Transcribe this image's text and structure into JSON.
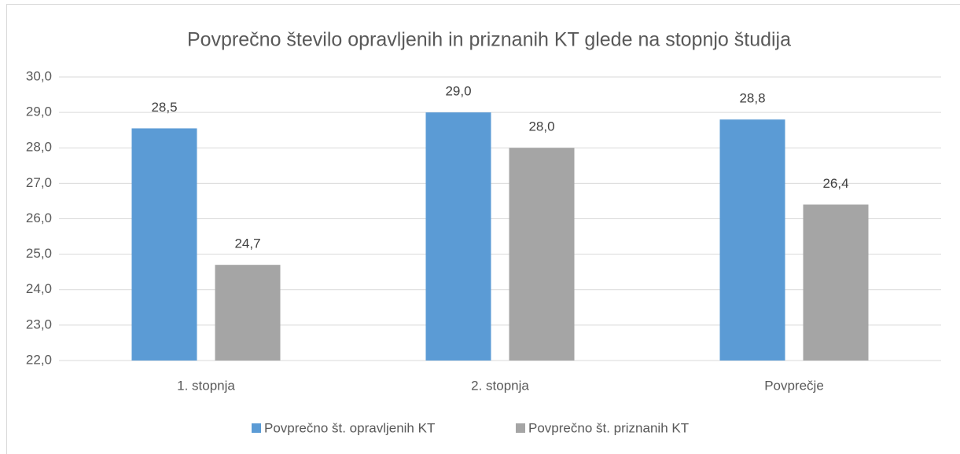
{
  "chart_data": {
    "type": "bar",
    "title": "Povprečno število opravljenih in priznanih KT glede na stopnjo študija",
    "categories": [
      "1. stopnja",
      "2. stopnja",
      "Povprečje"
    ],
    "series": [
      {
        "name": "Povprečno št. opravljenih KT",
        "color": "#5b9bd5",
        "values": [
          28.55,
          29.0,
          28.8
        ],
        "value_labels": [
          "28,5",
          "29,0",
          "28,8"
        ]
      },
      {
        "name": "Povprečno št. priznanih KT",
        "color": "#a5a5a5",
        "values": [
          24.7,
          28.0,
          26.4
        ],
        "value_labels": [
          "24,7",
          "28,0",
          "26,4"
        ]
      }
    ],
    "ylim": [
      22,
      30
    ],
    "yticks": [
      {
        "value": 22,
        "label": "22,0"
      },
      {
        "value": 23,
        "label": "23,0"
      },
      {
        "value": 24,
        "label": "24,0"
      },
      {
        "value": 25,
        "label": "25,0"
      },
      {
        "value": 26,
        "label": "26,0"
      },
      {
        "value": 27,
        "label": "27,0"
      },
      {
        "value": 28,
        "label": "28,0"
      },
      {
        "value": 29,
        "label": "29,0"
      },
      {
        "value": 30,
        "label": "30,0"
      }
    ],
    "grid": true,
    "legend": "bottom"
  }
}
